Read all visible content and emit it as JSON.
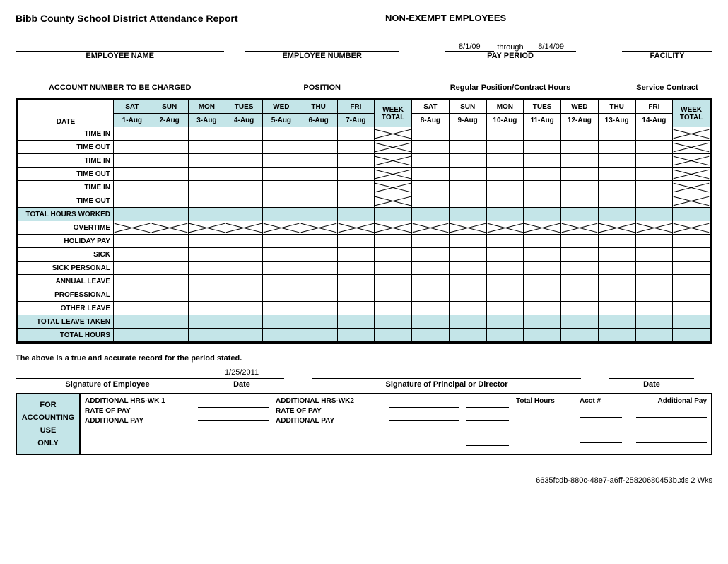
{
  "title": "Bibb County School District Attendance Report",
  "subtitle": "NON-EXEMPT EMPLOYEES",
  "pay_period": {
    "start": "8/1/09",
    "through": "through",
    "end": "8/14/09",
    "label": "PAY PERIOD"
  },
  "header_row1": {
    "employee_name": "EMPLOYEE NAME",
    "employee_number": "EMPLOYEE NUMBER",
    "facility": "FACILITY"
  },
  "header_row2": {
    "account": "ACCOUNT NUMBER TO BE CHARGED",
    "position": "POSITION",
    "regular": "Regular Position/Contract Hours",
    "service": "Service Contract"
  },
  "table": {
    "date_label": "DATE",
    "week_total": "WEEK TOTAL",
    "days_wk1": [
      {
        "dow": "SAT",
        "date": "1-Aug"
      },
      {
        "dow": "SUN",
        "date": "2-Aug"
      },
      {
        "dow": "MON",
        "date": "3-Aug"
      },
      {
        "dow": "TUES",
        "date": "4-Aug"
      },
      {
        "dow": "WED",
        "date": "5-Aug"
      },
      {
        "dow": "THU",
        "date": "6-Aug"
      },
      {
        "dow": "FRI",
        "date": "7-Aug"
      }
    ],
    "days_wk2": [
      {
        "dow": "SAT",
        "date": "8-Aug"
      },
      {
        "dow": "SUN",
        "date": "9-Aug"
      },
      {
        "dow": "MON",
        "date": "10-Aug"
      },
      {
        "dow": "TUES",
        "date": "11-Aug"
      },
      {
        "dow": "WED",
        "date": "12-Aug"
      },
      {
        "dow": "THU",
        "date": "13-Aug"
      },
      {
        "dow": "FRI",
        "date": "14-Aug"
      }
    ],
    "rows": [
      {
        "label": "TIME IN",
        "wt_x": true
      },
      {
        "label": "TIME OUT",
        "wt_x": true
      },
      {
        "label": "TIME IN",
        "wt_x": true
      },
      {
        "label": "TIME OUT",
        "wt_x": true
      },
      {
        "label": "TIME IN",
        "wt_x": true
      },
      {
        "label": "TIME OUT",
        "wt_x": true
      },
      {
        "label": "TOTAL HOURS WORKED",
        "hl": true
      },
      {
        "label": "OVERTIME",
        "all_x": true
      },
      {
        "label": "HOLIDAY PAY"
      },
      {
        "label": "SICK"
      },
      {
        "label": "SICK PERSONAL"
      },
      {
        "label": "ANNUAL LEAVE"
      },
      {
        "label": "PROFESSIONAL"
      },
      {
        "label": "OTHER LEAVE"
      },
      {
        "label": "TOTAL LEAVE TAKEN",
        "hl": true
      },
      {
        "label": "TOTAL HOURS",
        "hl": true
      }
    ]
  },
  "cert": "The above is a true and accurate record for the period stated.",
  "sig_date": "1/25/2011",
  "sig": {
    "emp": "Signature of Employee",
    "date": "Date",
    "principal": "Signature of Principal or Director"
  },
  "acct": {
    "for": "FOR",
    "accounting": "ACCOUNTING",
    "use": "USE",
    "only": "ONLY",
    "hrs1": "ADDITIONAL HRS-WK 1",
    "hrs2": "ADDITIONAL HRS-WK2",
    "rate": "RATE OF PAY",
    "addpay": "ADDITIONAL PAY",
    "total_hours": "Total Hours",
    "acct_no": "Acct #",
    "addpay_r": "Additional Pay"
  },
  "footer": "6635fcdb-880c-48e7-a6ff-25820680453b.xls 2 Wks",
  "colors": {
    "highlight": "#c4e5e8",
    "border": "#000000",
    "bg": "#ffffff"
  }
}
